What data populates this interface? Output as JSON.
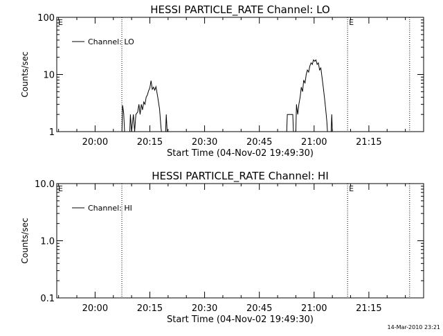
{
  "chart_data": [
    {
      "type": "line",
      "title": "HESSI PARTICLE_RATE Channel: LO",
      "xlabel": "Start Time (04-Nov-02 19:49:30)",
      "ylabel": "Counts/sec",
      "y_scale": "log",
      "xlim": [
        "19:49:30",
        "21:30:00"
      ],
      "ylim": [
        1,
        100
      ],
      "x_tick_labels": [
        "20:00",
        "20:15",
        "20:30",
        "20:45",
        "21:00",
        "21:15"
      ],
      "y_tick_labels": [
        "1",
        "10",
        "100"
      ],
      "grid": false,
      "legend": {
        "position": "top-left",
        "entries": [
          "Channel: LO"
        ]
      },
      "vertical_markers": [
        {
          "time": "20:07:20",
          "label": ""
        },
        {
          "time": "21:09:10",
          "label": "E"
        },
        {
          "time": "21:26:10",
          "label": ""
        }
      ],
      "corner_label": "E",
      "series": [
        {
          "name": "Channel: LO",
          "points": [
            [
              "20:07:22",
              1.0
            ],
            [
              "20:07:32",
              2.9
            ],
            [
              "20:07:50",
              2.1
            ],
            [
              "20:08:05",
              1.0
            ],
            [
              "20:09:30",
              1.0
            ],
            [
              "20:09:40",
              2.0
            ],
            [
              "20:10:00",
              1.0
            ],
            [
              "20:10:30",
              2.0
            ],
            [
              "20:10:50",
              1.0
            ],
            [
              "20:11:10",
              2.0
            ],
            [
              "20:11:40",
              2.2
            ],
            [
              "20:12:00",
              3.0
            ],
            [
              "20:12:20",
              2.0
            ],
            [
              "20:12:40",
              3.0
            ],
            [
              "20:13:00",
              2.4
            ],
            [
              "20:13:20",
              3.3
            ],
            [
              "20:13:40",
              3.0
            ],
            [
              "20:14:00",
              4.0
            ],
            [
              "20:14:20",
              4.4
            ],
            [
              "20:14:40",
              5.2
            ],
            [
              "20:15:00",
              5.8
            ],
            [
              "20:15:20",
              7.8
            ],
            [
              "20:15:40",
              5.5
            ],
            [
              "20:16:00",
              6.0
            ],
            [
              "20:16:20",
              5.3
            ],
            [
              "20:16:40",
              6.1
            ],
            [
              "20:17:10",
              4.0
            ],
            [
              "20:17:40",
              2.5
            ],
            [
              "20:18:00",
              1.3
            ],
            [
              "20:18:10",
              1.0
            ],
            [
              "20:19:20",
              1.0
            ],
            [
              "20:19:30",
              2.0
            ],
            [
              "20:19:45",
              1.0
            ],
            [
              "20:52:30",
              1.0
            ],
            [
              "20:52:40",
              2.0
            ],
            [
              "20:54:10",
              2.0
            ],
            [
              "20:54:20",
              1.0
            ],
            [
              "20:55:00",
              1.0
            ],
            [
              "20:55:10",
              3.0
            ],
            [
              "20:55:30",
              2.0
            ],
            [
              "20:55:50",
              3.0
            ],
            [
              "20:56:10",
              4.0
            ],
            [
              "20:56:30",
              6.0
            ],
            [
              "20:56:50",
              5.0
            ],
            [
              "20:57:10",
              8.0
            ],
            [
              "20:57:30",
              7.0
            ],
            [
              "20:57:50",
              10.0
            ],
            [
              "20:58:10",
              12.0
            ],
            [
              "20:58:30",
              11.0
            ],
            [
              "20:58:50",
              14.0
            ],
            [
              "20:59:10",
              16.0
            ],
            [
              "20:59:30",
              15.0
            ],
            [
              "20:59:50",
              18.0
            ],
            [
              "21:00:10",
              17.0
            ],
            [
              "21:00:30",
              18.0
            ],
            [
              "21:00:50",
              15.0
            ],
            [
              "21:01:10",
              16.0
            ],
            [
              "21:01:30",
              12.0
            ],
            [
              "21:01:50",
              13.0
            ],
            [
              "21:02:10",
              9.0
            ],
            [
              "21:02:30",
              6.0
            ],
            [
              "21:02:50",
              4.0
            ],
            [
              "21:03:10",
              2.5
            ],
            [
              "21:03:30",
              1.5
            ],
            [
              "21:03:40",
              1.0
            ],
            [
              "21:04:40",
              1.0
            ],
            [
              "21:04:50",
              2.0
            ],
            [
              "21:05:00",
              1.0
            ]
          ]
        }
      ]
    },
    {
      "type": "line",
      "title": "HESSI PARTICLE_RATE Channel: HI",
      "xlabel": "Start Time (04-Nov-02 19:49:30)",
      "ylabel": "Counts/sec",
      "y_scale": "log",
      "xlim": [
        "19:49:30",
        "21:30:00"
      ],
      "ylim": [
        0.1,
        10
      ],
      "x_tick_labels": [
        "20:00",
        "20:15",
        "20:30",
        "20:45",
        "21:00",
        "21:15"
      ],
      "y_tick_labels": [
        "0.1",
        "1.0",
        "10.0"
      ],
      "grid": false,
      "legend": {
        "position": "top-left",
        "entries": [
          "Channel: HI"
        ]
      },
      "vertical_markers": [
        {
          "time": "20:07:20",
          "label": ""
        },
        {
          "time": "21:09:10",
          "label": "E"
        },
        {
          "time": "21:26:10",
          "label": ""
        }
      ],
      "corner_label": "E",
      "series": [
        {
          "name": "Channel: HI",
          "points": []
        }
      ]
    }
  ],
  "footer": {
    "timestamp": "14-Mar-2010 23:21"
  }
}
